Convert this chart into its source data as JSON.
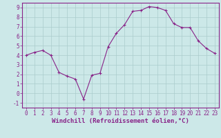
{
  "x": [
    0,
    1,
    2,
    3,
    4,
    5,
    6,
    7,
    8,
    9,
    10,
    11,
    12,
    13,
    14,
    15,
    16,
    17,
    18,
    19,
    20,
    21,
    22,
    23
  ],
  "y": [
    4.0,
    4.3,
    4.5,
    4.0,
    2.2,
    1.8,
    1.5,
    -0.6,
    1.9,
    2.1,
    4.9,
    6.3,
    7.2,
    8.6,
    8.7,
    9.1,
    9.0,
    8.7,
    7.3,
    6.9,
    6.9,
    5.5,
    4.7,
    4.2
  ],
  "line_color": "#882288",
  "marker": "+",
  "marker_size": 3,
  "background_color": "#cce8e8",
  "grid_color": "#aacccc",
  "xlabel": "Windchill (Refroidissement éolien,°C)",
  "xlim": [
    -0.5,
    23.5
  ],
  "ylim": [
    -1.5,
    9.5
  ],
  "yticks": [
    -1,
    0,
    1,
    2,
    3,
    4,
    5,
    6,
    7,
    8,
    9
  ],
  "xticks": [
    0,
    1,
    2,
    3,
    4,
    5,
    6,
    7,
    8,
    9,
    10,
    11,
    12,
    13,
    14,
    15,
    16,
    17,
    18,
    19,
    20,
    21,
    22,
    23
  ],
  "tick_color": "#882288",
  "label_color": "#882288",
  "spine_color": "#882288",
  "tick_fontsize": 5.5,
  "xlabel_fontsize": 6.5
}
